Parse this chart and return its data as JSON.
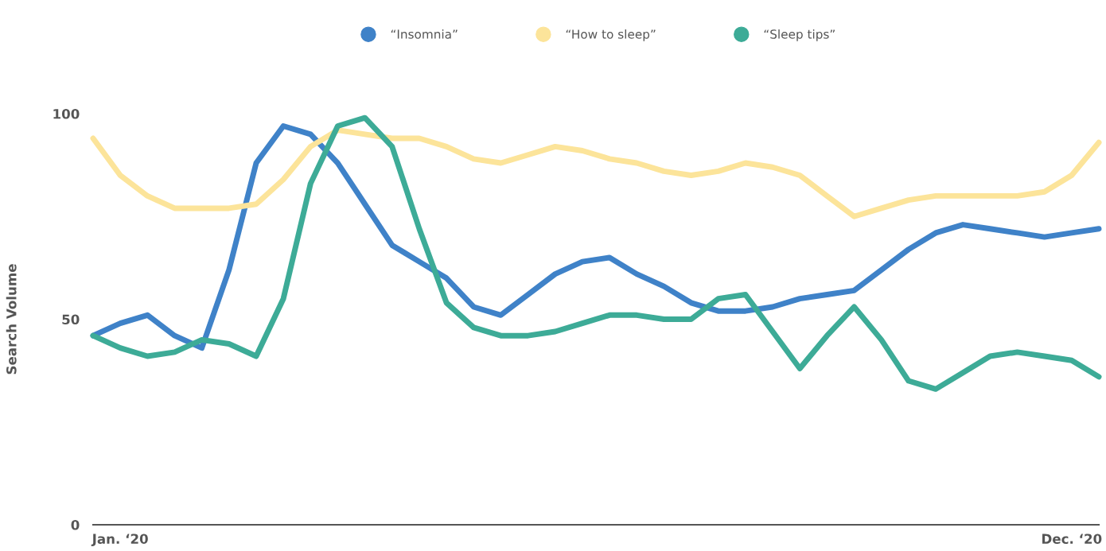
{
  "chart_data": {
    "type": "line",
    "ylabel": "Search Volume",
    "categories": [
      null,
      "Jan. ‘20",
      null,
      null,
      null,
      null,
      null,
      null,
      null,
      null,
      null,
      null,
      null,
      null,
      null,
      null,
      null,
      null,
      null,
      null,
      null,
      null,
      null,
      null,
      null,
      null,
      null,
      null,
      null,
      null,
      null,
      null,
      null,
      null,
      null,
      null,
      "Dec. ‘20",
      null
    ],
    "series": [
      {
        "name": "“Insomnia”",
        "color": "#3f82c8",
        "values": [
          46,
          49,
          51,
          46,
          43,
          62,
          88,
          97,
          95,
          88,
          78,
          68,
          64,
          60,
          53,
          51,
          56,
          61,
          64,
          65,
          61,
          58,
          54,
          52,
          52,
          53,
          55,
          56,
          57,
          62,
          67,
          71,
          73,
          72,
          71,
          70,
          71,
          72
        ]
      },
      {
        "name": "“How to sleep”",
        "color": "#fce49a",
        "values": [
          94,
          85,
          80,
          77,
          77,
          77,
          78,
          84,
          92,
          96,
          95,
          94,
          94,
          92,
          89,
          88,
          90,
          92,
          91,
          89,
          88,
          86,
          85,
          86,
          88,
          87,
          85,
          80,
          75,
          77,
          79,
          80,
          80,
          80,
          80,
          81,
          85,
          93
        ]
      },
      {
        "name": "“Sleep tips”",
        "color": "#3dab97",
        "values": [
          46,
          43,
          41,
          42,
          45,
          44,
          41,
          55,
          83,
          97,
          99,
          92,
          72,
          54,
          48,
          46,
          46,
          47,
          49,
          51,
          51,
          50,
          50,
          55,
          56,
          47,
          38,
          46,
          53,
          45,
          35,
          33,
          37,
          41,
          42,
          41,
          40,
          36
        ]
      }
    ],
    "ylim": [
      0,
      100
    ],
    "yticks": [
      0,
      50,
      100
    ],
    "grid": false,
    "legend": "top",
    "marker": "none",
    "line_style": "solid"
  }
}
